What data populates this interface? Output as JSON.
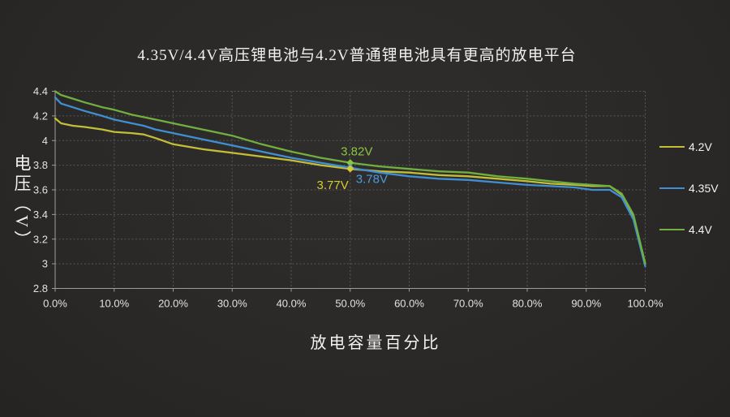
{
  "page": {
    "title": "4.35V/4.4V高压锂电池与4.2V普通锂电池具有更高的放电平台"
  },
  "colors": {
    "background": "#2b2927",
    "grid": "#575757",
    "axis": "#9c9c9c",
    "text": "#f0f0f0",
    "series_4_2v": "#c4bd37",
    "series_4_35v": "#3f8fd2",
    "series_4_4v": "#70b03f"
  },
  "chart_data": {
    "type": "line",
    "title": "4.35V/4.4V高压锂电池与4.2V普通锂电池具有更高的放电平台",
    "xlabel": "放电容量百分比",
    "ylabel": "电压（V）",
    "xlim": [
      0,
      100
    ],
    "ylim": [
      2.8,
      4.4
    ],
    "grid": true,
    "legend_position": "right",
    "x_ticks": [
      {
        "v": 0,
        "label": "0.0%"
      },
      {
        "v": 10,
        "label": "10.0%"
      },
      {
        "v": 20,
        "label": "20.0%"
      },
      {
        "v": 30,
        "label": "30.0%"
      },
      {
        "v": 40,
        "label": "40.0%"
      },
      {
        "v": 50,
        "label": "50.0%"
      },
      {
        "v": 60,
        "label": "60.0%"
      },
      {
        "v": 70,
        "label": "70.0%"
      },
      {
        "v": 80,
        "label": "80.0%"
      },
      {
        "v": 90,
        "label": "90.0%"
      },
      {
        "v": 100,
        "label": "100.0%"
      }
    ],
    "y_ticks": [
      {
        "v": 4.4,
        "label": "4.4"
      },
      {
        "v": 4.2,
        "label": "4.2"
      },
      {
        "v": 4.0,
        "label": "4"
      },
      {
        "v": 3.8,
        "label": "3.8"
      },
      {
        "v": 3.6,
        "label": "3.6"
      },
      {
        "v": 3.4,
        "label": "3.4"
      },
      {
        "v": 3.2,
        "label": "3.2"
      },
      {
        "v": 3.0,
        "label": "3"
      },
      {
        "v": 2.8,
        "label": "2.8"
      }
    ],
    "x": [
      0,
      1,
      3,
      5,
      8,
      10,
      13,
      15,
      17,
      20,
      25,
      30,
      35,
      40,
      45,
      50,
      55,
      60,
      65,
      70,
      75,
      80,
      84,
      88,
      91,
      94,
      96,
      98,
      100
    ],
    "series": [
      {
        "name": "4.2V",
        "color": "#c4bd37",
        "values": [
          4.18,
          4.14,
          4.12,
          4.11,
          4.09,
          4.07,
          4.06,
          4.05,
          4.02,
          3.97,
          3.93,
          3.9,
          3.87,
          3.84,
          3.8,
          3.77,
          3.75,
          3.74,
          3.72,
          3.71,
          3.69,
          3.67,
          3.65,
          3.64,
          3.63,
          3.63,
          3.56,
          3.39,
          3.0
        ]
      },
      {
        "name": "4.35V",
        "color": "#3f8fd2",
        "values": [
          4.35,
          4.3,
          4.27,
          4.24,
          4.2,
          4.17,
          4.14,
          4.12,
          4.09,
          4.06,
          4.01,
          3.96,
          3.91,
          3.86,
          3.82,
          3.78,
          3.74,
          3.71,
          3.69,
          3.68,
          3.66,
          3.64,
          3.63,
          3.62,
          3.6,
          3.6,
          3.54,
          3.36,
          2.98
        ]
      },
      {
        "name": "4.4V",
        "color": "#70b03f",
        "values": [
          4.4,
          4.37,
          4.34,
          4.31,
          4.27,
          4.25,
          4.21,
          4.19,
          4.17,
          4.14,
          4.09,
          4.04,
          3.97,
          3.91,
          3.86,
          3.82,
          3.79,
          3.77,
          3.75,
          3.74,
          3.71,
          3.69,
          3.67,
          3.65,
          3.64,
          3.63,
          3.57,
          3.4,
          3.0
        ]
      }
    ],
    "annotations": [
      {
        "text": "3.82V",
        "x": 50,
        "y": 3.82,
        "color": "#8bc63f",
        "placement": "above",
        "marker": true
      },
      {
        "text": "3.78V",
        "x": 50,
        "y": 3.78,
        "color": "#4a9ade",
        "placement": "below-right",
        "marker": true
      },
      {
        "text": "3.77V",
        "x": 50,
        "y": 3.77,
        "color": "#d9ca2e",
        "placement": "below-left",
        "marker": true
      }
    ],
    "legend": [
      "4.2V",
      "4.35V",
      "4.4V"
    ]
  }
}
